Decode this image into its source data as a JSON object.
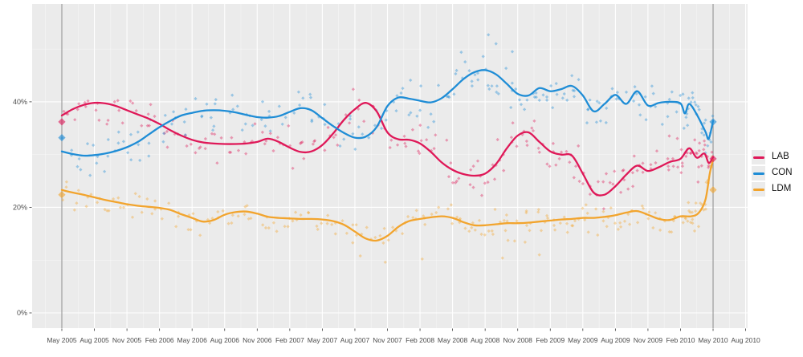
{
  "chart_data": {
    "type": "scatter",
    "title": "",
    "subtitle": "",
    "description": "UK voting-intention opinion polls, May 2005 to May 2010, with smoothed trend lines and general-election results marked",
    "x_axis": {
      "tick_labels": [
        "May 2005",
        "Aug 2005",
        "Nov 2005",
        "Feb 2006",
        "May 2006",
        "Aug 2006",
        "Nov 2006",
        "Feb 2007",
        "May 2007",
        "Aug 2007",
        "Nov 2007",
        "Feb 2008",
        "May 2008",
        "Aug 2008",
        "Nov 2008",
        "Feb 2009",
        "May 2009",
        "Aug 2009",
        "Nov 2009",
        "Feb 2010",
        "May 2010",
        "Aug 2010"
      ],
      "months_per_tick": 3,
      "first_month": "May 2005",
      "last_month": "Aug 2010"
    },
    "y_axis": {
      "tick_labels": [
        "0%",
        "20%",
        "40%"
      ],
      "tick_values": [
        0,
        20,
        40
      ],
      "minor_values": [
        10,
        30,
        50
      ],
      "unit": "%",
      "ylim": [
        -3,
        58.5
      ]
    },
    "grid": {
      "major": true,
      "minor": true
    },
    "legend_position": "right",
    "series": [
      {
        "name": "LAB",
        "color": "#df1858",
        "trend": [
          [
            0,
            37.4
          ],
          [
            1,
            38.6
          ],
          [
            2,
            39.4
          ],
          [
            3,
            39.8
          ],
          [
            4,
            39.7
          ],
          [
            5,
            39.2
          ],
          [
            6,
            38.4
          ],
          [
            7,
            37.6
          ],
          [
            8,
            36.8
          ],
          [
            9,
            35.8
          ],
          [
            10,
            34.6
          ],
          [
            11,
            33.6
          ],
          [
            12,
            32.8
          ],
          [
            13,
            32.3
          ],
          [
            14,
            32.1
          ],
          [
            15,
            32.0
          ],
          [
            16,
            32.0
          ],
          [
            17,
            32.1
          ],
          [
            18,
            32.4
          ],
          [
            19,
            33.0
          ],
          [
            20,
            32.4
          ],
          [
            21,
            31.3
          ],
          [
            22,
            30.5
          ],
          [
            23,
            30.6
          ],
          [
            24,
            31.8
          ],
          [
            25,
            34.0
          ],
          [
            26,
            36.6
          ],
          [
            27,
            38.6
          ],
          [
            28,
            39.8
          ],
          [
            29,
            38.2
          ],
          [
            30,
            34.2
          ],
          [
            31,
            32.9
          ],
          [
            32,
            32.8
          ],
          [
            33,
            32.1
          ],
          [
            34,
            30.5
          ],
          [
            35,
            28.5
          ],
          [
            36,
            27.1
          ],
          [
            37,
            26.3
          ],
          [
            38,
            26.0
          ],
          [
            39,
            26.4
          ],
          [
            40,
            28.2
          ],
          [
            41,
            31.2
          ],
          [
            42,
            33.6
          ],
          [
            43,
            34.2
          ],
          [
            44,
            32.4
          ],
          [
            45,
            30.6
          ],
          [
            46,
            30.0
          ],
          [
            47,
            29.8
          ],
          [
            48,
            26.4
          ],
          [
            49,
            22.8
          ],
          [
            50,
            22.4
          ],
          [
            51,
            24.0
          ],
          [
            52,
            26.2
          ],
          [
            53,
            27.9
          ],
          [
            54,
            26.9
          ],
          [
            55,
            27.6
          ],
          [
            56,
            28.6
          ],
          [
            57,
            29.2
          ],
          [
            57.8,
            31.2
          ],
          [
            58.5,
            29.4
          ],
          [
            59.2,
            30.2
          ],
          [
            59.6,
            28.4
          ],
          [
            60,
            29.5
          ]
        ]
      },
      {
        "name": "CON",
        "color": "#1f8dd6",
        "trend": [
          [
            0,
            30.6
          ],
          [
            1,
            30.1
          ],
          [
            2,
            29.8
          ],
          [
            3,
            29.9
          ],
          [
            4,
            30.2
          ],
          [
            5,
            30.7
          ],
          [
            6,
            31.4
          ],
          [
            7,
            32.4
          ],
          [
            8,
            33.8
          ],
          [
            9,
            35.2
          ],
          [
            10,
            36.4
          ],
          [
            11,
            37.4
          ],
          [
            12,
            37.9
          ],
          [
            13,
            38.3
          ],
          [
            14,
            38.4
          ],
          [
            15,
            38.3
          ],
          [
            16,
            38.0
          ],
          [
            17,
            37.5
          ],
          [
            18,
            37.1
          ],
          [
            19,
            37.0
          ],
          [
            20,
            37.3
          ],
          [
            21,
            38.1
          ],
          [
            22,
            38.8
          ],
          [
            23,
            38.4
          ],
          [
            24,
            36.9
          ],
          [
            25,
            35.4
          ],
          [
            26,
            34.1
          ],
          [
            27,
            33.2
          ],
          [
            28,
            33.4
          ],
          [
            29,
            35.2
          ],
          [
            30,
            39.2
          ],
          [
            31,
            40.8
          ],
          [
            32,
            40.6
          ],
          [
            33,
            40.2
          ],
          [
            34,
            39.9
          ],
          [
            35,
            40.7
          ],
          [
            36,
            42.4
          ],
          [
            37,
            44.3
          ],
          [
            38,
            45.6
          ],
          [
            39,
            46.0
          ],
          [
            40,
            45.2
          ],
          [
            41,
            43.4
          ],
          [
            42,
            41.5
          ],
          [
            43,
            41.2
          ],
          [
            44,
            42.6
          ],
          [
            45,
            42.0
          ],
          [
            46,
            42.4
          ],
          [
            47,
            43.0
          ],
          [
            48,
            41.2
          ],
          [
            49,
            38.2
          ],
          [
            50,
            39.6
          ],
          [
            51,
            41.3
          ],
          [
            52,
            39.6
          ],
          [
            53,
            42.0
          ],
          [
            54,
            39.3
          ],
          [
            55,
            39.8
          ],
          [
            56,
            40.0
          ],
          [
            57,
            39.7
          ],
          [
            57.4,
            37.8
          ],
          [
            57.8,
            39.6
          ],
          [
            58.5,
            37.6
          ],
          [
            59.3,
            34.3
          ],
          [
            59.6,
            33.0
          ],
          [
            60,
            36.4
          ]
        ]
      },
      {
        "name": "LDM",
        "color": "#f2a42d",
        "trend": [
          [
            0,
            23.3
          ],
          [
            1,
            22.8
          ],
          [
            2,
            22.4
          ],
          [
            3,
            21.9
          ],
          [
            4,
            21.4
          ],
          [
            5,
            21.0
          ],
          [
            6,
            20.6
          ],
          [
            7,
            20.3
          ],
          [
            8,
            20.1
          ],
          [
            9,
            19.9
          ],
          [
            10,
            19.5
          ],
          [
            11,
            18.7
          ],
          [
            12,
            18.0
          ],
          [
            13,
            17.3
          ],
          [
            14,
            17.6
          ],
          [
            15,
            18.6
          ],
          [
            16,
            19.1
          ],
          [
            17,
            19.2
          ],
          [
            18,
            18.8
          ],
          [
            19,
            18.2
          ],
          [
            20,
            18.0
          ],
          [
            21,
            17.9
          ],
          [
            22,
            17.8
          ],
          [
            23,
            17.8
          ],
          [
            24,
            17.7
          ],
          [
            25,
            17.4
          ],
          [
            26,
            16.7
          ],
          [
            27,
            15.4
          ],
          [
            28,
            14.1
          ],
          [
            29,
            13.7
          ],
          [
            30,
            14.6
          ],
          [
            31,
            16.3
          ],
          [
            32,
            17.4
          ],
          [
            33,
            17.8
          ],
          [
            34,
            18.1
          ],
          [
            35,
            18.3
          ],
          [
            36,
            18.0
          ],
          [
            37,
            17.2
          ],
          [
            38,
            16.6
          ],
          [
            39,
            16.6
          ],
          [
            40,
            16.8
          ],
          [
            41,
            17.0
          ],
          [
            42,
            17.0
          ],
          [
            43,
            17.1
          ],
          [
            44,
            17.3
          ],
          [
            45,
            17.5
          ],
          [
            46,
            17.7
          ],
          [
            47,
            17.8
          ],
          [
            48,
            18.0
          ],
          [
            49,
            18.0
          ],
          [
            50,
            18.2
          ],
          [
            51,
            18.5
          ],
          [
            52,
            19.0
          ],
          [
            53,
            19.3
          ],
          [
            54,
            18.6
          ],
          [
            55,
            17.8
          ],
          [
            56,
            17.6
          ],
          [
            57,
            18.3
          ],
          [
            58,
            18.3
          ],
          [
            58.7,
            19.0
          ],
          [
            59.3,
            21.5
          ],
          [
            59.7,
            26.5
          ],
          [
            60,
            29.0
          ]
        ]
      }
    ],
    "elections": [
      {
        "label": "May 2005",
        "month": 0,
        "results": {
          "LAB": 36.2,
          "CON": 33.2,
          "LDM": 22.4
        }
      },
      {
        "label": "May 2010",
        "month": 60,
        "results": {
          "LAB": 29.2,
          "CON": 36.2,
          "LDM": 23.3
        }
      }
    ],
    "scatter": {
      "marker": "diamond",
      "opacity": 0.4,
      "seed": 1337,
      "per_month": 3,
      "per_month_from": {
        "month": 36,
        "count": 4
      },
      "end_cluster": {
        "from_month": 57,
        "extra": 5
      },
      "y_spread": {
        "LAB": 2.7,
        "CON": 2.7,
        "LDM": 2.0
      },
      "extra_points": {
        "LAB": [],
        "CON": [
          [
            36.8,
            49.4
          ],
          [
            39.3,
            52.7
          ],
          [
            40.0,
            51.0
          ],
          [
            41.5,
            49.5
          ]
        ],
        "LDM": [
          [
            27.5,
            10.8
          ],
          [
            29.8,
            9.6
          ],
          [
            33.2,
            10.2
          ],
          [
            40.6,
            10.4
          ],
          [
            44.0,
            11.0
          ]
        ]
      }
    },
    "panel": {
      "background": "#ebebeb",
      "grid_major_color": "#ffffff",
      "grid_minor_color": "#ffffff",
      "election_refline_color": "#8a8a8a",
      "axis_text_color": "#4d4d4d"
    }
  }
}
